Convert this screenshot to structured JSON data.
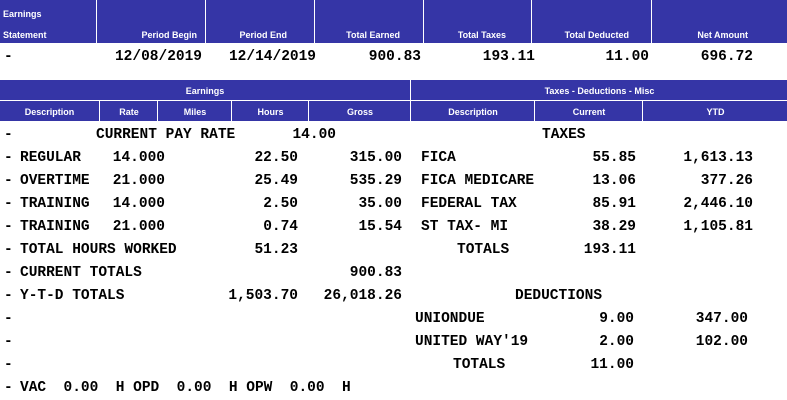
{
  "summary": {
    "headers": {
      "statement_line1": "Earnings",
      "statement_line2": "Statement",
      "period_begin": "Period Begin",
      "period_end": "Period End",
      "total_earned": "Total Earned",
      "total_taxes": "Total Taxes",
      "total_deducted": "Total Deducted",
      "net_amount": "Net Amount"
    },
    "values": {
      "statement": "-",
      "period_begin": "12/08/2019",
      "period_end": "12/14/2019",
      "total_earned": "900.83",
      "total_taxes": "193.11",
      "total_deducted": "11.00",
      "net_amount": "696.72"
    }
  },
  "detail_headers": {
    "earnings_title": "Earnings",
    "tdm_title": "Taxes - Deductions - Misc",
    "description": "Description",
    "rate": "Rate",
    "miles": "Miles",
    "hours": "Hours",
    "gross": "Gross",
    "tdm_description": "Description",
    "current": "Current",
    "ytd": "YTD"
  },
  "earnings": {
    "current_pay_rate_label": "CURRENT PAY RATE",
    "current_pay_rate_value": "14.00",
    "rows": [
      {
        "dash": "-",
        "description": "REGULAR",
        "rate": "14.000",
        "hours": "22.50",
        "gross": "315.00"
      },
      {
        "dash": "-",
        "description": "OVERTIME",
        "rate": "21.000",
        "hours": "25.49",
        "gross": "535.29"
      },
      {
        "dash": "-",
        "description": "TRAINING",
        "rate": "14.000",
        "hours": "2.50",
        "gross": "35.00"
      },
      {
        "dash": "-",
        "description": "TRAINING",
        "rate": "21.000",
        "hours": "0.74",
        "gross": "15.54"
      }
    ],
    "total_hours_label": "TOTAL HOURS WORKED",
    "total_hours_value": "51.23",
    "current_totals_label": "CURRENT TOTALS",
    "current_totals_value": "900.83",
    "ytd_totals_label": "Y-T-D TOTALS",
    "ytd_hours": "1,503.70",
    "ytd_gross": "26,018.26",
    "leave_line": "VAC  0.00  H OPD  0.00  H OPW  0.00  H",
    "dash": "-"
  },
  "taxes": {
    "title": "TAXES",
    "rows": [
      {
        "description": "FICA",
        "current": "55.85",
        "ytd": "1,613.13"
      },
      {
        "description": "FICA MEDICARE",
        "current": "13.06",
        "ytd": "377.26"
      },
      {
        "description": "FEDERAL TAX",
        "current": "85.91",
        "ytd": "2,446.10"
      },
      {
        "description": "ST TAX- MI",
        "current": "38.29",
        "ytd": "1,105.81"
      }
    ],
    "totals_label": "TOTALS",
    "totals_value": "193.11"
  },
  "deductions": {
    "title": "DEDUCTIONS",
    "rows": [
      {
        "description": "UNIONDUE",
        "current": "9.00",
        "ytd": "347.00"
      },
      {
        "description": "UNITED WAY'19",
        "current": "2.00",
        "ytd": "102.00"
      }
    ],
    "totals_label": "TOTALS",
    "totals_value": "11.00"
  },
  "colors": {
    "header_bg": "#3535a6",
    "header_text": "#ffffff",
    "body_text": "#000000"
  }
}
